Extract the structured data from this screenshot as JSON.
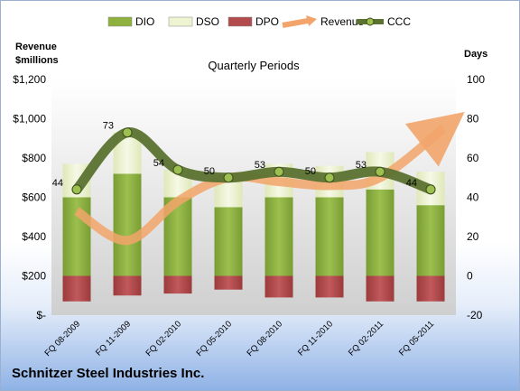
{
  "company_name": "Schnitzer Steel Industries Inc.",
  "chart_data": {
    "type": "bar",
    "title": "Quarterly Periods",
    "left_axis_title": [
      "Revenue",
      "$millions"
    ],
    "right_axis_title": "Days",
    "left_axis_ticks": [
      "$-",
      "$200",
      "$400",
      "$600",
      "$800",
      "$1,000",
      "$1,200"
    ],
    "right_axis_ticks": [
      "-20",
      "0",
      "20",
      "40",
      "60",
      "80",
      "100"
    ],
    "left_ylim": [
      0,
      1200
    ],
    "right_ylim": [
      -20,
      100
    ],
    "grid": false,
    "legend_position": "top",
    "categories": [
      "FQ 08-2009",
      "FQ 11-2009",
      "FQ 02-2010",
      "FQ 05-2010",
      "FQ 08-2010",
      "FQ 11-2010",
      "FQ 02-2011",
      "FQ 05-2011"
    ],
    "series": [
      {
        "name": "DIO",
        "axis": "right",
        "color": "#8db03f",
        "values": [
          40,
          52,
          40,
          35,
          40,
          40,
          44,
          36
        ]
      },
      {
        "name": "DSO",
        "axis": "right",
        "color": "#eef3d2",
        "values": [
          17,
          21,
          14,
          15,
          17,
          16,
          19,
          17
        ]
      },
      {
        "name": "DPO",
        "axis": "right",
        "color": "#b24b4d",
        "values": [
          -13,
          -10,
          -9,
          -7,
          -11,
          -11,
          -13,
          -13
        ]
      },
      {
        "name": "Revenue",
        "axis": "left",
        "color": "#f2a46a",
        "values": [
          530,
          380,
          580,
          700,
          680,
          660,
          700,
          950
        ]
      },
      {
        "name": "CCC",
        "axis": "right",
        "color": "#5b7230",
        "values": [
          44,
          73,
          54,
          50,
          53,
          50,
          53,
          44
        ]
      }
    ],
    "ccc_labels": [
      "44",
      "73",
      "54",
      "50",
      "53",
      "50",
      "53",
      "44"
    ]
  }
}
